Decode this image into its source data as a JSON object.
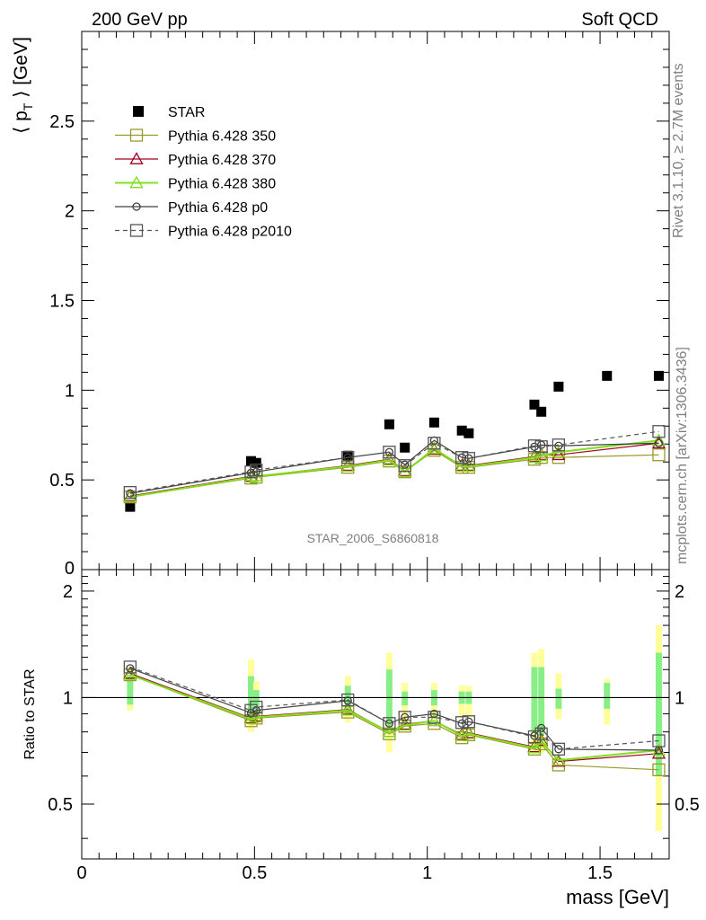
{
  "header": {
    "left": "200 GeV pp",
    "right": "Soft QCD"
  },
  "side": {
    "rivet": "Rivet 3.1.10, ≥ 2.7M events",
    "mcplots": "mcplots.cern.ch [arXiv:1306.3436]"
  },
  "watermark": "STAR_2006_S6860818",
  "chart_data": [
    {
      "type": "scatter",
      "panel": "main",
      "ylabel": "⟨ p_T ⟩ [GeV]",
      "xlim": [
        0,
        1.7
      ],
      "ylim": [
        0,
        3.0
      ],
      "yticks": [
        0.5,
        1,
        1.5,
        2,
        2.5
      ],
      "yticklabels": [
        "0.5",
        "1",
        "1.5",
        "2",
        "2.5"
      ],
      "ylabel_zero": "0",
      "legend_position": "top-left",
      "series": [
        {
          "name": "STAR",
          "style": "data",
          "color": "#000000",
          "points": [
            [
              0.14,
              0.35
            ],
            [
              0.49,
              0.605
            ],
            [
              0.505,
              0.595
            ],
            [
              0.77,
              0.635
            ],
            [
              0.89,
              0.81
            ],
            [
              0.935,
              0.68
            ],
            [
              1.02,
              0.82
            ],
            [
              1.1,
              0.775
            ],
            [
              1.12,
              0.76
            ],
            [
              1.31,
              0.92
            ],
            [
              1.33,
              0.88
            ],
            [
              1.38,
              1.02
            ],
            [
              1.52,
              1.08
            ],
            [
              1.67,
              1.08
            ]
          ]
        },
        {
          "name": "Pythia 6.428 350",
          "marker": "square-open",
          "color": "#9a9a2a",
          "points": [
            [
              0.14,
              0.405
            ],
            [
              0.49,
              0.51
            ],
            [
              0.505,
              0.515
            ],
            [
              0.77,
              0.57
            ],
            [
              0.89,
              0.605
            ],
            [
              0.935,
              0.545
            ],
            [
              1.02,
              0.665
            ],
            [
              1.1,
              0.57
            ],
            [
              1.12,
              0.57
            ],
            [
              1.31,
              0.615
            ],
            [
              1.33,
              0.625
            ],
            [
              1.38,
              0.625
            ],
            [
              1.67,
              0.64
            ]
          ]
        },
        {
          "name": "Pythia 6.428 370",
          "marker": "triangle-open",
          "color": "#a00020",
          "points": [
            [
              0.14,
              0.41
            ],
            [
              0.49,
              0.52
            ],
            [
              0.505,
              0.52
            ],
            [
              0.77,
              0.58
            ],
            [
              0.89,
              0.615
            ],
            [
              0.935,
              0.55
            ],
            [
              1.02,
              0.67
            ],
            [
              1.1,
              0.58
            ],
            [
              1.12,
              0.58
            ],
            [
              1.31,
              0.63
            ],
            [
              1.33,
              0.64
            ],
            [
              1.38,
              0.64
            ],
            [
              1.67,
              0.705
            ]
          ]
        },
        {
          "name": "Pythia 6.428 380",
          "marker": "triangle-open",
          "color": "#80e020",
          "points": [
            [
              0.14,
              0.405
            ],
            [
              0.49,
              0.515
            ],
            [
              0.505,
              0.52
            ],
            [
              0.77,
              0.575
            ],
            [
              0.89,
              0.61
            ],
            [
              0.935,
              0.545
            ],
            [
              1.02,
              0.675
            ],
            [
              1.1,
              0.575
            ],
            [
              1.12,
              0.575
            ],
            [
              1.31,
              0.625
            ],
            [
              1.33,
              0.635
            ],
            [
              1.38,
              0.655
            ],
            [
              1.67,
              0.72
            ]
          ]
        },
        {
          "name": "Pythia 6.428 p0",
          "marker": "circle-open",
          "color": "#404040",
          "points": [
            [
              0.14,
              0.425
            ],
            [
              0.49,
              0.54
            ],
            [
              0.505,
              0.545
            ],
            [
              0.77,
              0.625
            ],
            [
              0.89,
              0.655
            ],
            [
              0.935,
              0.585
            ],
            [
              1.02,
              0.72
            ],
            [
              1.1,
              0.625
            ],
            [
              1.12,
              0.62
            ],
            [
              1.31,
              0.685
            ],
            [
              1.33,
              0.695
            ],
            [
              1.38,
              0.69
            ],
            [
              1.67,
              0.705
            ]
          ]
        },
        {
          "name": "Pythia 6.428 p2010",
          "marker": "square-open",
          "dashed": true,
          "color": "#555555",
          "points": [
            [
              0.14,
              0.43
            ],
            [
              0.49,
              0.545
            ],
            [
              0.505,
              0.555
            ],
            [
              0.77,
              0.625
            ],
            [
              0.89,
              0.655
            ],
            [
              0.935,
              0.58
            ],
            [
              1.02,
              0.705
            ],
            [
              1.1,
              0.625
            ],
            [
              1.12,
              0.62
            ],
            [
              1.31,
              0.69
            ],
            [
              1.33,
              0.685
            ],
            [
              1.38,
              0.695
            ],
            [
              1.67,
              0.77
            ]
          ]
        }
      ]
    },
    {
      "type": "line",
      "panel": "ratio",
      "xlabel": "mass [GeV]",
      "ylabel": "Ratio to STAR",
      "xlim": [
        0,
        1.7
      ],
      "ylim": [
        0.35,
        2.3
      ],
      "xticks": [
        0,
        0.5,
        1,
        1.5
      ],
      "xticklabels": [
        "0",
        "0.5",
        "1",
        "1.5"
      ],
      "yticks": [
        0.5,
        1,
        2
      ],
      "yticklabels": [
        "0.5",
        "1",
        "2"
      ],
      "bands": [
        {
          "x": 0.14,
          "w": 0.018,
          "stat": [
            0.955,
            1.16
          ],
          "total": [
            0.92,
            1.2
          ]
        },
        {
          "x": 0.49,
          "w": 0.018,
          "stat": [
            0.87,
            1.15
          ],
          "total": [
            0.8,
            1.28
          ]
        },
        {
          "x": 0.505,
          "w": 0.018,
          "stat": [
            0.89,
            1.05
          ],
          "total": [
            0.86,
            1.11
          ]
        },
        {
          "x": 0.77,
          "w": 0.018,
          "stat": [
            0.9,
            1.08
          ],
          "total": [
            0.85,
            1.15
          ]
        },
        {
          "x": 0.89,
          "w": 0.018,
          "stat": [
            0.83,
            1.2
          ],
          "total": [
            0.7,
            1.34
          ]
        },
        {
          "x": 0.935,
          "w": 0.018,
          "stat": [
            0.95,
            1.04
          ],
          "total": [
            0.84,
            1.1
          ]
        },
        {
          "x": 1.02,
          "w": 0.018,
          "stat": [
            0.95,
            1.05
          ],
          "total": [
            0.87,
            1.1
          ]
        },
        {
          "x": 1.1,
          "w": 0.018,
          "stat": [
            0.96,
            1.04
          ],
          "total": [
            0.88,
            1.08
          ]
        },
        {
          "x": 1.12,
          "w": 0.018,
          "stat": [
            0.96,
            1.04
          ],
          "total": [
            0.88,
            1.08
          ]
        },
        {
          "x": 1.31,
          "w": 0.018,
          "stat": [
            0.8,
            1.22
          ],
          "total": [
            0.7,
            1.34
          ]
        },
        {
          "x": 1.33,
          "w": 0.018,
          "stat": [
            0.78,
            1.22
          ],
          "total": [
            0.7,
            1.37
          ]
        },
        {
          "x": 1.38,
          "w": 0.018,
          "stat": [
            0.93,
            1.06
          ],
          "total": [
            0.87,
            1.17
          ]
        },
        {
          "x": 1.52,
          "w": 0.018,
          "stat": [
            0.93,
            1.1
          ],
          "total": [
            0.84,
            1.13
          ]
        },
        {
          "x": 1.67,
          "w": 0.018,
          "stat": [
            0.6,
            1.34
          ],
          "total": [
            0.42,
            1.6
          ]
        }
      ],
      "series": [
        {
          "name": "Pythia 6.428 350",
          "marker": "square-open",
          "color": "#9a9a2a",
          "points": [
            [
              0.14,
              1.16
            ],
            [
              0.49,
              0.86
            ],
            [
              0.505,
              0.875
            ],
            [
              0.77,
              0.91
            ],
            [
              0.89,
              0.79
            ],
            [
              0.935,
              0.83
            ],
            [
              1.02,
              0.845
            ],
            [
              1.1,
              0.77
            ],
            [
              1.12,
              0.785
            ],
            [
              1.31,
              0.715
            ],
            [
              1.33,
              0.74
            ],
            [
              1.38,
              0.645
            ],
            [
              1.67,
              0.625
            ]
          ]
        },
        {
          "name": "Pythia 6.428 370",
          "marker": "triangle-open",
          "color": "#a00020",
          "points": [
            [
              0.14,
              1.17
            ],
            [
              0.49,
              0.875
            ],
            [
              0.505,
              0.885
            ],
            [
              0.77,
              0.925
            ],
            [
              0.89,
              0.8
            ],
            [
              0.935,
              0.84
            ],
            [
              1.02,
              0.86
            ],
            [
              1.1,
              0.785
            ],
            [
              1.12,
              0.795
            ],
            [
              1.31,
              0.725
            ],
            [
              1.33,
              0.755
            ],
            [
              1.38,
              0.66
            ],
            [
              1.67,
              0.695
            ]
          ]
        },
        {
          "name": "Pythia 6.428 380",
          "marker": "triangle-open",
          "color": "#80e020",
          "points": [
            [
              0.14,
              1.16
            ],
            [
              0.49,
              0.87
            ],
            [
              0.505,
              0.88
            ],
            [
              0.77,
              0.92
            ],
            [
              0.89,
              0.8
            ],
            [
              0.935,
              0.835
            ],
            [
              1.02,
              0.86
            ],
            [
              1.1,
              0.78
            ],
            [
              1.12,
              0.79
            ],
            [
              1.31,
              0.72
            ],
            [
              1.33,
              0.75
            ],
            [
              1.38,
              0.665
            ],
            [
              1.67,
              0.71
            ]
          ]
        },
        {
          "name": "Pythia 6.428 p0",
          "marker": "circle-open",
          "color": "#404040",
          "points": [
            [
              0.14,
              1.21
            ],
            [
              0.49,
              0.905
            ],
            [
              0.505,
              0.92
            ],
            [
              0.77,
              0.98
            ],
            [
              0.89,
              0.845
            ],
            [
              0.935,
              0.88
            ],
            [
              1.02,
              0.9
            ],
            [
              1.1,
              0.845
            ],
            [
              1.12,
              0.855
            ],
            [
              1.31,
              0.78
            ],
            [
              1.33,
              0.82
            ],
            [
              1.38,
              0.715
            ],
            [
              1.67,
              0.71
            ]
          ]
        },
        {
          "name": "Pythia 6.428 p2010",
          "marker": "square-open",
          "dashed": true,
          "color": "#555555",
          "points": [
            [
              0.14,
              1.22
            ],
            [
              0.49,
              0.92
            ],
            [
              0.505,
              0.94
            ],
            [
              0.77,
              0.985
            ],
            [
              0.89,
              0.845
            ],
            [
              0.935,
              0.88
            ],
            [
              1.02,
              0.88
            ],
            [
              1.1,
              0.85
            ],
            [
              1.12,
              0.855
            ],
            [
              1.31,
              0.775
            ],
            [
              1.33,
              0.79
            ],
            [
              1.38,
              0.715
            ],
            [
              1.67,
              0.755
            ]
          ]
        }
      ]
    }
  ]
}
